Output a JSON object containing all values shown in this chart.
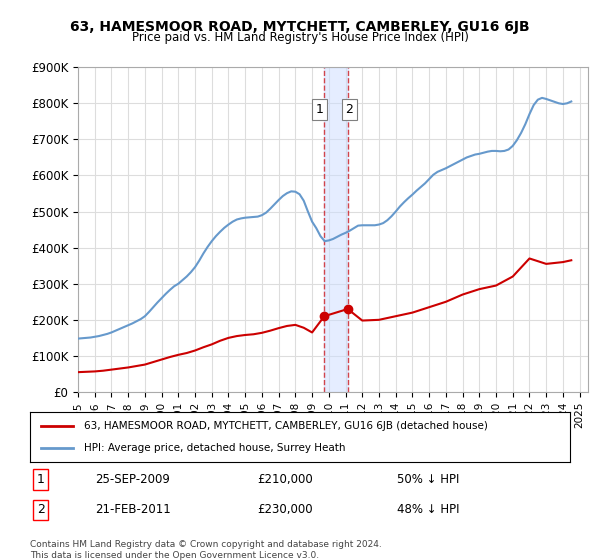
{
  "title": "63, HAMESMOOR ROAD, MYTCHETT, CAMBERLEY, GU16 6JB",
  "subtitle": "Price paid vs. HM Land Registry's House Price Index (HPI)",
  "ylabel_ticks": [
    "£0",
    "£100K",
    "£200K",
    "£300K",
    "£400K",
    "£500K",
    "£600K",
    "£700K",
    "£800K",
    "£900K"
  ],
  "ylim": [
    0,
    900000
  ],
  "xlim_start": 1995.0,
  "xlim_end": 2025.5,
  "transactions": [
    {
      "label": "1",
      "date": 2009.73,
      "price": 210000,
      "pct": "50% ↓ HPI",
      "date_str": "25-SEP-2009"
    },
    {
      "label": "2",
      "date": 2011.13,
      "price": 230000,
      "pct": "48% ↓ HPI",
      "date_str": "21-FEB-2011"
    }
  ],
  "shaded_x_start": 2009.73,
  "shaded_x_end": 2011.13,
  "red_line_color": "#cc0000",
  "blue_line_color": "#6699cc",
  "legend_label_red": "63, HAMESMOOR ROAD, MYTCHETT, CAMBERLEY, GU16 6JB (detached house)",
  "legend_label_blue": "HPI: Average price, detached house, Surrey Heath",
  "footnote": "Contains HM Land Registry data © Crown copyright and database right 2024.\nThis data is licensed under the Open Government Licence v3.0.",
  "background_color": "#ffffff",
  "grid_color": "#dddddd",
  "hpi_years": [
    1995.0,
    1995.25,
    1995.5,
    1995.75,
    1996.0,
    1996.25,
    1996.5,
    1996.75,
    1997.0,
    1997.25,
    1997.5,
    1997.75,
    1998.0,
    1998.25,
    1998.5,
    1998.75,
    1999.0,
    1999.25,
    1999.5,
    1999.75,
    2000.0,
    2000.25,
    2000.5,
    2000.75,
    2001.0,
    2001.25,
    2001.5,
    2001.75,
    2002.0,
    2002.25,
    2002.5,
    2002.75,
    2003.0,
    2003.25,
    2003.5,
    2003.75,
    2004.0,
    2004.25,
    2004.5,
    2004.75,
    2005.0,
    2005.25,
    2005.5,
    2005.75,
    2006.0,
    2006.25,
    2006.5,
    2006.75,
    2007.0,
    2007.25,
    2007.5,
    2007.75,
    2008.0,
    2008.25,
    2008.5,
    2008.75,
    2009.0,
    2009.25,
    2009.5,
    2009.75,
    2010.0,
    2010.25,
    2010.5,
    2010.75,
    2011.0,
    2011.25,
    2011.5,
    2011.75,
    2012.0,
    2012.25,
    2012.5,
    2012.75,
    2013.0,
    2013.25,
    2013.5,
    2013.75,
    2014.0,
    2014.25,
    2014.5,
    2014.75,
    2015.0,
    2015.25,
    2015.5,
    2015.75,
    2016.0,
    2016.25,
    2016.5,
    2016.75,
    2017.0,
    2017.25,
    2017.5,
    2017.75,
    2018.0,
    2018.25,
    2018.5,
    2018.75,
    2019.0,
    2019.25,
    2019.5,
    2019.75,
    2020.0,
    2020.25,
    2020.5,
    2020.75,
    2021.0,
    2021.25,
    2021.5,
    2021.75,
    2022.0,
    2022.25,
    2022.5,
    2022.75,
    2023.0,
    2023.25,
    2023.5,
    2023.75,
    2024.0,
    2024.25,
    2024.5
  ],
  "hpi_values": [
    148000,
    149000,
    150000,
    151000,
    153000,
    155000,
    158000,
    161000,
    165000,
    170000,
    175000,
    180000,
    185000,
    190000,
    196000,
    202000,
    210000,
    222000,
    235000,
    248000,
    260000,
    272000,
    283000,
    293000,
    300000,
    310000,
    320000,
    332000,
    346000,
    364000,
    384000,
    402000,
    418000,
    432000,
    444000,
    455000,
    464000,
    472000,
    478000,
    481000,
    483000,
    484000,
    485000,
    486000,
    490000,
    497000,
    508000,
    520000,
    532000,
    543000,
    551000,
    556000,
    555000,
    548000,
    530000,
    500000,
    472000,
    454000,
    432000,
    418000,
    420000,
    424000,
    430000,
    436000,
    441000,
    447000,
    454000,
    461000,
    462000,
    462000,
    462000,
    462000,
    464000,
    468000,
    476000,
    487000,
    500000,
    514000,
    526000,
    537000,
    547000,
    558000,
    568000,
    578000,
    590000,
    602000,
    610000,
    615000,
    620000,
    626000,
    632000,
    638000,
    644000,
    650000,
    654000,
    658000,
    660000,
    663000,
    666000,
    668000,
    668000,
    667000,
    668000,
    672000,
    682000,
    698000,
    718000,
    742000,
    770000,
    795000,
    810000,
    815000,
    812000,
    808000,
    804000,
    800000,
    798000,
    800000,
    805000
  ],
  "red_years": [
    1995.0,
    1995.5,
    1996.0,
    1996.5,
    1997.0,
    1997.5,
    1998.0,
    1998.5,
    1999.0,
    1999.5,
    2000.0,
    2000.5,
    2001.0,
    2001.5,
    2002.0,
    2002.5,
    2003.0,
    2003.5,
    2004.0,
    2004.5,
    2005.0,
    2005.5,
    2006.0,
    2006.5,
    2007.0,
    2007.5,
    2008.0,
    2008.5,
    2009.0,
    2009.73,
    2011.13,
    2012.0,
    2013.0,
    2014.0,
    2015.0,
    2016.0,
    2017.0,
    2018.0,
    2019.0,
    2020.0,
    2021.0,
    2022.0,
    2023.0,
    2024.0,
    2024.5
  ],
  "red_values": [
    55000,
    56000,
    57000,
    59000,
    62000,
    65000,
    68000,
    72000,
    76000,
    83000,
    90000,
    97000,
    103000,
    108000,
    115000,
    124000,
    132000,
    142000,
    150000,
    155000,
    158000,
    160000,
    164000,
    170000,
    177000,
    183000,
    186000,
    178000,
    165000,
    210000,
    230000,
    198000,
    200000,
    210000,
    220000,
    235000,
    250000,
    270000,
    285000,
    295000,
    320000,
    370000,
    355000,
    360000,
    365000
  ]
}
